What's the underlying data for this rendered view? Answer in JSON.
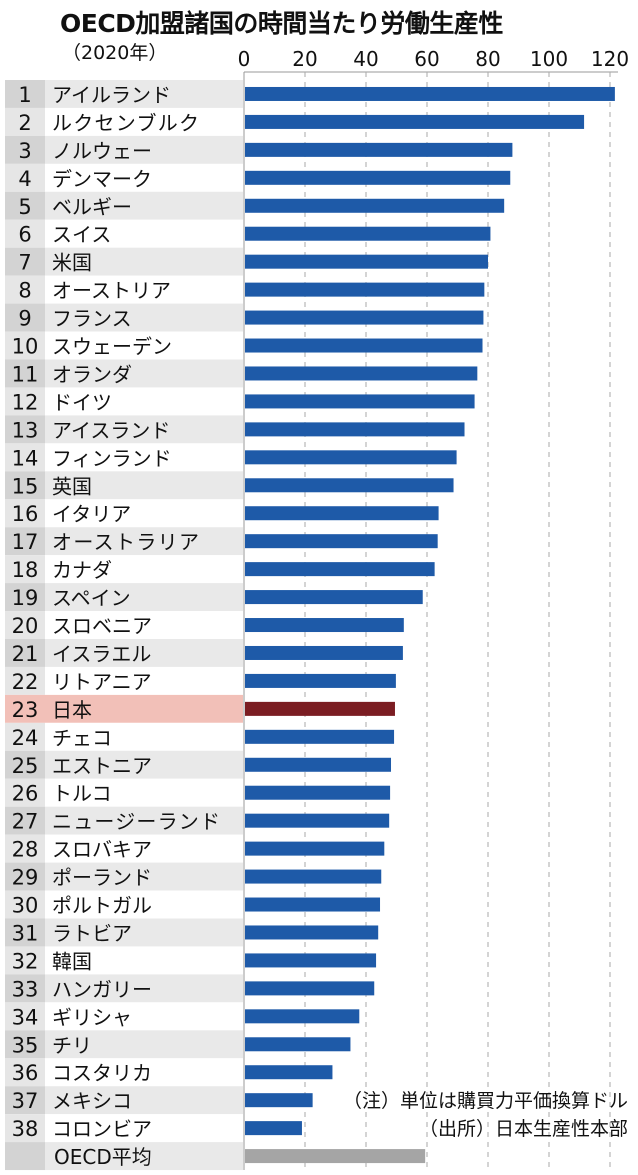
{
  "chart_data": {
    "type": "bar",
    "orientation": "horizontal",
    "title": "OECD加盟諸国の時間当たり労働生産性",
    "subtitle": "（2020年）",
    "xlim": [
      0,
      120
    ],
    "xticks": [
      0,
      20,
      40,
      60,
      80,
      100,
      120
    ],
    "grid": true,
    "ranks": [
      "1",
      "2",
      "3",
      "4",
      "5",
      "6",
      "7",
      "8",
      "9",
      "10",
      "11",
      "12",
      "13",
      "14",
      "15",
      "16",
      "17",
      "18",
      "19",
      "20",
      "21",
      "22",
      "23",
      "24",
      "25",
      "26",
      "27",
      "28",
      "29",
      "30",
      "31",
      "32",
      "33",
      "34",
      "35",
      "36",
      "37",
      "38",
      ""
    ],
    "categories": [
      "アイルランド",
      "ルクセンブルク",
      "ノルウェー",
      "デンマーク",
      "ベルギー",
      "スイス",
      "米国",
      "オーストリア",
      "フランス",
      "スウェーデン",
      "オランダ",
      "ドイツ",
      "アイスランド",
      "フィンランド",
      "英国",
      "イタリア",
      "オーストラリア",
      "カナダ",
      "スペイン",
      "スロベニア",
      "イスラエル",
      "リトアニア",
      "日本",
      "チェコ",
      "エストニア",
      "トルコ",
      "ニュージーランド",
      "スロバキア",
      "ポーランド",
      "ポルトガル",
      "ラトビア",
      "韓国",
      "ハンガリー",
      "ギリシャ",
      "チリ",
      "コスタリカ",
      "メキシコ",
      "コロンビア",
      "OECD平均"
    ],
    "values": [
      121.6,
      111.5,
      88.0,
      87.3,
      85.3,
      80.8,
      80.0,
      78.8,
      78.5,
      78.2,
      76.5,
      75.6,
      72.3,
      69.7,
      68.7,
      63.8,
      63.5,
      62.5,
      58.6,
      52.4,
      52.1,
      49.8,
      49.5,
      49.2,
      48.2,
      47.9,
      47.6,
      46.0,
      45.0,
      44.6,
      44.0,
      43.3,
      42.7,
      37.8,
      34.9,
      29.0,
      22.5,
      19.0,
      59.4
    ],
    "highlight_index": 22,
    "average_index": 38,
    "colors": {
      "bar": "#1e5aa8",
      "highlight": "#7b1d22",
      "average": "#a5a5a5",
      "highlight_row": "#f2c0b8"
    },
    "notes": [
      "（注）単位は購買力平価換算ドル",
      "（出所）日本生産性本部"
    ]
  }
}
